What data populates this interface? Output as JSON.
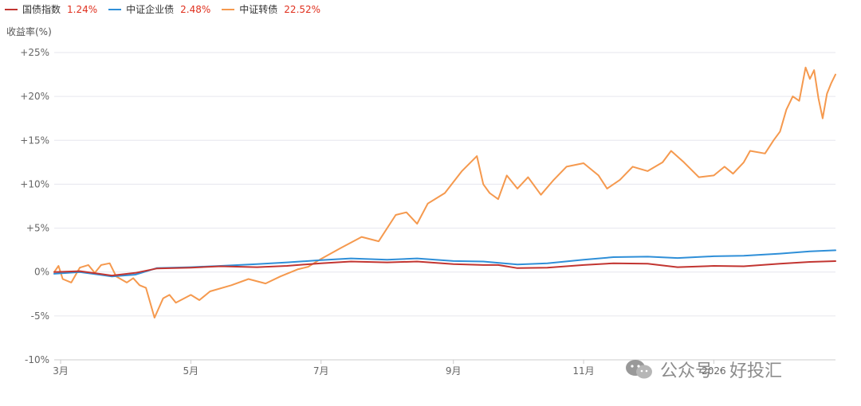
{
  "chart_data": {
    "type": "line",
    "ylabel": "收益率(%)",
    "ylim": [
      -10,
      25
    ],
    "y_ticks": [
      {
        "value": 25,
        "label": "+25%"
      },
      {
        "value": 20,
        "label": "+20%"
      },
      {
        "value": 15,
        "label": "+15%"
      },
      {
        "value": 10,
        "label": "+10%"
      },
      {
        "value": 5,
        "label": "+5%"
      },
      {
        "value": 0,
        "label": "0%"
      },
      {
        "value": -5,
        "label": "-5%"
      },
      {
        "value": -10,
        "label": "-10%"
      }
    ],
    "x_ticks": [
      {
        "date": "2025-03-01",
        "label": "3月"
      },
      {
        "date": "2025-05-01",
        "label": "5月"
      },
      {
        "date": "2025-07-01",
        "label": "7月"
      },
      {
        "date": "2025-09-01",
        "label": "9月"
      },
      {
        "date": "2025-11-01",
        "label": "11月"
      },
      {
        "date": "2026-01-01",
        "label": "2026"
      }
    ],
    "xlim": [
      "2025-02-26",
      "2026-02-27"
    ],
    "grid": true,
    "legend_position": "top-left",
    "series": [
      {
        "name": "国债指数",
        "final_label": "1.24%",
        "color": "#c23531",
        "points": [
          [
            "2025-02-26",
            0.0
          ],
          [
            "2025-03-10",
            0.1
          ],
          [
            "2025-03-25",
            -0.4
          ],
          [
            "2025-04-05",
            -0.1
          ],
          [
            "2025-04-15",
            0.4
          ],
          [
            "2025-05-01",
            0.5
          ],
          [
            "2025-05-15",
            0.65
          ],
          [
            "2025-06-01",
            0.55
          ],
          [
            "2025-06-15",
            0.7
          ],
          [
            "2025-07-01",
            1.0
          ],
          [
            "2025-07-15",
            1.2
          ],
          [
            "2025-08-01",
            1.1
          ],
          [
            "2025-08-15",
            1.2
          ],
          [
            "2025-09-01",
            0.9
          ],
          [
            "2025-09-15",
            0.8
          ],
          [
            "2025-09-22",
            0.8
          ],
          [
            "2025-10-01",
            0.45
          ],
          [
            "2025-10-15",
            0.5
          ],
          [
            "2025-11-01",
            0.8
          ],
          [
            "2025-11-15",
            1.0
          ],
          [
            "2025-12-01",
            0.95
          ],
          [
            "2025-12-15",
            0.55
          ],
          [
            "2026-01-01",
            0.7
          ],
          [
            "2026-01-15",
            0.65
          ],
          [
            "2026-02-01",
            0.95
          ],
          [
            "2026-02-15",
            1.15
          ],
          [
            "2026-02-27",
            1.24
          ]
        ]
      },
      {
        "name": "中证企业债",
        "final_label": "2.48%",
        "color": "#2f8fd8",
        "points": [
          [
            "2025-02-26",
            -0.2
          ],
          [
            "2025-03-10",
            0.0
          ],
          [
            "2025-03-25",
            -0.5
          ],
          [
            "2025-04-05",
            -0.3
          ],
          [
            "2025-04-15",
            0.45
          ],
          [
            "2025-05-01",
            0.55
          ],
          [
            "2025-05-15",
            0.7
          ],
          [
            "2025-06-01",
            0.9
          ],
          [
            "2025-06-15",
            1.1
          ],
          [
            "2025-07-01",
            1.35
          ],
          [
            "2025-07-15",
            1.55
          ],
          [
            "2025-08-01",
            1.4
          ],
          [
            "2025-08-15",
            1.55
          ],
          [
            "2025-09-01",
            1.25
          ],
          [
            "2025-09-15",
            1.2
          ],
          [
            "2025-10-01",
            0.85
          ],
          [
            "2025-10-15",
            1.0
          ],
          [
            "2025-11-01",
            1.4
          ],
          [
            "2025-11-15",
            1.7
          ],
          [
            "2025-12-01",
            1.75
          ],
          [
            "2025-12-15",
            1.6
          ],
          [
            "2026-01-01",
            1.8
          ],
          [
            "2026-01-15",
            1.85
          ],
          [
            "2026-02-01",
            2.1
          ],
          [
            "2026-02-15",
            2.35
          ],
          [
            "2026-02-27",
            2.48
          ]
        ]
      },
      {
        "name": "中证转债",
        "final_label": "22.52%",
        "color": "#f5994e",
        "points": [
          [
            "2025-02-26",
            0.0
          ],
          [
            "2025-02-28",
            0.7
          ],
          [
            "2025-03-02",
            -0.8
          ],
          [
            "2025-03-06",
            -1.2
          ],
          [
            "2025-03-10",
            0.5
          ],
          [
            "2025-03-14",
            0.8
          ],
          [
            "2025-03-17",
            -0.1
          ],
          [
            "2025-03-20",
            0.8
          ],
          [
            "2025-03-24",
            1.0
          ],
          [
            "2025-03-27",
            -0.5
          ],
          [
            "2025-04-01",
            -1.2
          ],
          [
            "2025-04-04",
            -0.7
          ],
          [
            "2025-04-07",
            -1.5
          ],
          [
            "2025-04-10",
            -1.8
          ],
          [
            "2025-04-14",
            -5.2
          ],
          [
            "2025-04-18",
            -3.0
          ],
          [
            "2025-04-21",
            -2.6
          ],
          [
            "2025-04-24",
            -3.5
          ],
          [
            "2025-05-01",
            -2.6
          ],
          [
            "2025-05-05",
            -3.2
          ],
          [
            "2025-05-10",
            -2.2
          ],
          [
            "2025-05-20",
            -1.5
          ],
          [
            "2025-05-28",
            -0.8
          ],
          [
            "2025-06-05",
            -1.3
          ],
          [
            "2025-06-12",
            -0.5
          ],
          [
            "2025-06-20",
            0.3
          ],
          [
            "2025-06-25",
            0.6
          ],
          [
            "2025-07-01",
            1.5
          ],
          [
            "2025-07-10",
            2.7
          ],
          [
            "2025-07-20",
            4.0
          ],
          [
            "2025-07-28",
            3.5
          ],
          [
            "2025-08-05",
            6.5
          ],
          [
            "2025-08-10",
            6.8
          ],
          [
            "2025-08-15",
            5.5
          ],
          [
            "2025-08-20",
            7.8
          ],
          [
            "2025-08-28",
            9.0
          ],
          [
            "2025-09-05",
            11.5
          ],
          [
            "2025-09-12",
            13.2
          ],
          [
            "2025-09-15",
            10.0
          ],
          [
            "2025-09-18",
            9.0
          ],
          [
            "2025-09-22",
            8.3
          ],
          [
            "2025-09-26",
            11.0
          ],
          [
            "2025-10-01",
            9.5
          ],
          [
            "2025-10-06",
            10.8
          ],
          [
            "2025-10-12",
            8.8
          ],
          [
            "2025-10-18",
            10.5
          ],
          [
            "2025-10-24",
            12.0
          ],
          [
            "2025-11-01",
            12.4
          ],
          [
            "2025-11-08",
            11.0
          ],
          [
            "2025-11-12",
            9.5
          ],
          [
            "2025-11-18",
            10.5
          ],
          [
            "2025-11-24",
            12.0
          ],
          [
            "2025-12-01",
            11.5
          ],
          [
            "2025-12-08",
            12.5
          ],
          [
            "2025-12-12",
            13.8
          ],
          [
            "2025-12-18",
            12.5
          ],
          [
            "2025-12-25",
            10.8
          ],
          [
            "2026-01-01",
            11.0
          ],
          [
            "2026-01-06",
            12.0
          ],
          [
            "2026-01-10",
            11.2
          ],
          [
            "2026-01-15",
            12.5
          ],
          [
            "2026-01-18",
            13.8
          ],
          [
            "2026-01-25",
            13.5
          ],
          [
            "2026-01-29",
            15.0
          ],
          [
            "2026-02-01",
            16.0
          ],
          [
            "2026-02-04",
            18.5
          ],
          [
            "2026-02-07",
            20.0
          ],
          [
            "2026-02-10",
            19.5
          ],
          [
            "2026-02-13",
            23.3
          ],
          [
            "2026-02-15",
            22.0
          ],
          [
            "2026-02-17",
            23.0
          ],
          [
            "2026-02-19",
            19.8
          ],
          [
            "2026-02-21",
            17.5
          ],
          [
            "2026-02-23",
            20.3
          ],
          [
            "2026-02-25",
            21.5
          ],
          [
            "2026-02-27",
            22.5
          ]
        ]
      }
    ]
  },
  "watermark": {
    "icon": "wechat-icon",
    "text": "公众号 · 好投汇"
  }
}
